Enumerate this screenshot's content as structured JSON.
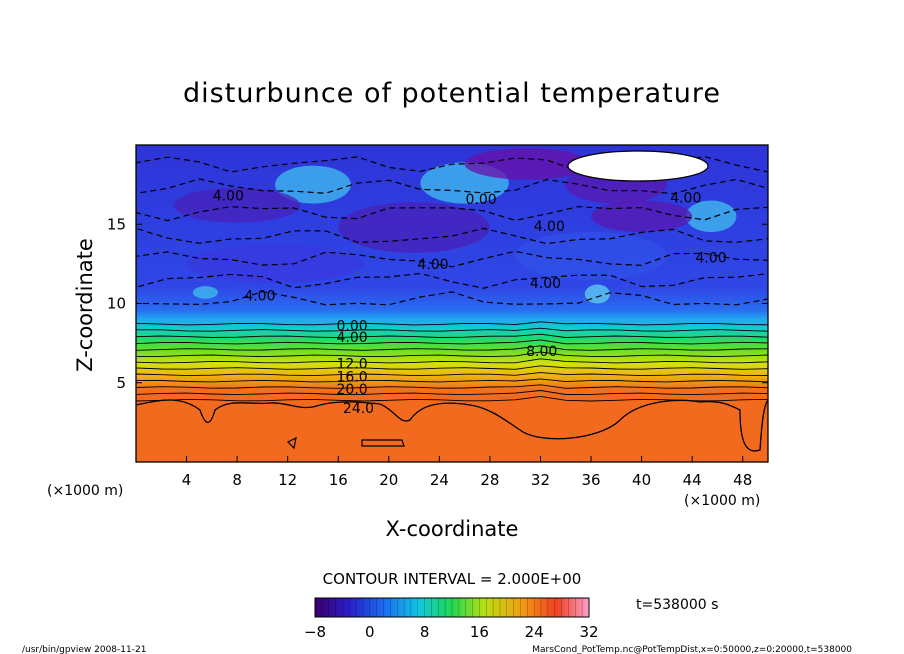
{
  "chart_data": {
    "type": "heatmap",
    "title": "disturbunce of potential temperature",
    "xlabel": "X-coordinate",
    "ylabel": "Z-coordinate",
    "x_unit_left": "(×1000 m)",
    "x_unit_right": "(×1000 m)",
    "xlim": [
      0,
      50
    ],
    "ylim": [
      0,
      20
    ],
    "xticks": [
      "4",
      "8",
      "12",
      "16",
      "20",
      "24",
      "28",
      "32",
      "36",
      "40",
      "44",
      "48"
    ],
    "yticks": [
      "5",
      "10",
      "15"
    ],
    "contour_interval_text": "CONTOUR INTERVAL = 2.000E+00",
    "time_text": "t=538000 s",
    "colorbar": {
      "min": -8,
      "max": 32,
      "ticks": [
        "−8",
        "0",
        "8",
        "16",
        "24",
        "32"
      ]
    },
    "contour_labels": [
      {
        "text": "4.00",
        "x": 7.3,
        "z": 16.8
      },
      {
        "text": "0.00",
        "x": 27.3,
        "z": 16.6
      },
      {
        "text": "4.00",
        "x": 32.7,
        "z": 14.9
      },
      {
        "text": "4.00",
        "x": 43.5,
        "z": 16.7
      },
      {
        "text": "4.00",
        "x": 45.5,
        "z": 12.9
      },
      {
        "text": "4.00",
        "x": 23.5,
        "z": 12.5
      },
      {
        "text": "4.00",
        "x": 32.4,
        "z": 11.3
      },
      {
        "text": "4.00",
        "x": 9.8,
        "z": 10.5
      },
      {
        "text": "0.00",
        "x": 17.1,
        "z": 8.6
      },
      {
        "text": "4.00",
        "x": 17.1,
        "z": 7.9
      },
      {
        "text": "8.00",
        "x": 32.1,
        "z": 7.0
      },
      {
        "text": "12.0",
        "x": 17.1,
        "z": 6.2
      },
      {
        "text": "16.0",
        "x": 17.1,
        "z": 5.4
      },
      {
        "text": "20.0",
        "x": 17.1,
        "z": 4.6
      },
      {
        "text": "24.0",
        "x": 17.6,
        "z": 3.4
      }
    ],
    "mean_profile": [
      {
        "z": 0.0,
        "value": 25
      },
      {
        "z": 3.6,
        "value": 25
      },
      {
        "z": 3.9,
        "value": 23
      },
      {
        "z": 4.3,
        "value": 21
      },
      {
        "z": 4.7,
        "value": 19
      },
      {
        "z": 5.1,
        "value": 17
      },
      {
        "z": 5.5,
        "value": 15
      },
      {
        "z": 5.9,
        "value": 13
      },
      {
        "z": 6.3,
        "value": 11
      },
      {
        "z": 6.7,
        "value": 9
      },
      {
        "z": 7.1,
        "value": 7
      },
      {
        "z": 7.5,
        "value": 5
      },
      {
        "z": 7.9,
        "value": 3
      },
      {
        "z": 8.3,
        "value": 1
      },
      {
        "z": 8.7,
        "value": 0
      },
      {
        "z": 10,
        "value": -2
      },
      {
        "z": 12,
        "value": -3
      },
      {
        "z": 15,
        "value": -3
      },
      {
        "z": 18,
        "value": -2
      },
      {
        "z": 20,
        "value": -1
      }
    ]
  },
  "footer": {
    "left": "/usr/bin/gpview   2008-11-21",
    "right": "MarsCond_PotTemp.nc@PotTempDist,x=0:50000,z=0:20000,t=538000"
  }
}
